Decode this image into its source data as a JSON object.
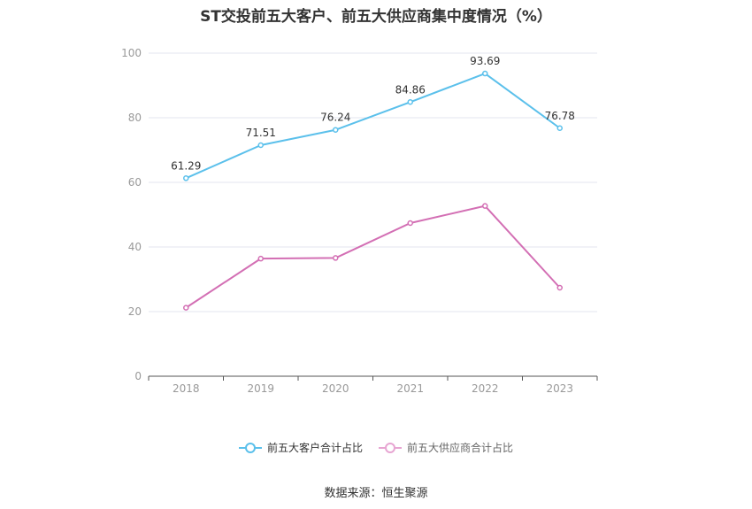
{
  "chart_data": {
    "type": "line",
    "title": "ST交投前五大客户、前五大供应商集中度情况（%）",
    "categories": [
      "2018",
      "2019",
      "2020",
      "2021",
      "2022",
      "2023"
    ],
    "ylim": [
      0,
      100
    ],
    "yticks": [
      0,
      20,
      40,
      60,
      80,
      100
    ],
    "grid": true,
    "legend_position": "bottom",
    "series": [
      {
        "name": "前五大客户合计占比",
        "color": "#5bc0eb",
        "values": [
          61.29,
          71.51,
          76.24,
          84.86,
          93.69,
          76.78
        ],
        "labels": [
          "61.29",
          "71.51",
          "76.24",
          "84.86",
          "93.69",
          "76.78"
        ],
        "show_labels": true
      },
      {
        "name": "前五大供应商合计占比",
        "color": "#d36fb4",
        "values": [
          21.2,
          36.4,
          36.6,
          47.4,
          52.7,
          27.4
        ],
        "show_labels": false
      }
    ]
  },
  "source": "数据来源：恒生聚源"
}
